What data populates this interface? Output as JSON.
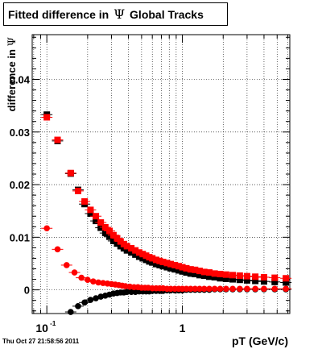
{
  "title": {
    "prefix": "Fitted difference in",
    "symbol": "Ψ",
    "suffix": "Global Tracks"
  },
  "timestamp": "Thu Oct 27 21:58:56 2011",
  "chart_data": {
    "type": "scatter",
    "xlabel": "pT (GeV/c)",
    "ylabel_prefix": "difference in",
    "ylabel_symbol": "Ψ",
    "x_scale": "log",
    "xlim": [
      0.078,
      6.2
    ],
    "ylim": [
      -0.0045,
      0.0485
    ],
    "x_ticks": [
      {
        "value": 0.1,
        "base": "10",
        "exp": "-1"
      },
      {
        "value": 1,
        "base": "1",
        "exp": ""
      }
    ],
    "y_ticks": [
      0,
      0.01,
      0.02,
      0.03,
      0.04
    ],
    "y_tick_labels": [
      "0",
      "0.01",
      "0.02",
      "0.03",
      "0.04"
    ],
    "grid": true,
    "series": [
      {
        "color": "#000000",
        "marker": "square",
        "points": [
          [
            0.1,
            0.0333
          ],
          [
            0.12,
            0.0283
          ],
          [
            0.15,
            0.0221
          ],
          [
            0.17,
            0.019
          ],
          [
            0.19,
            0.0163
          ],
          [
            0.21,
            0.0145
          ],
          [
            0.23,
            0.0131
          ],
          [
            0.25,
            0.0118
          ],
          [
            0.27,
            0.0108
          ],
          [
            0.29,
            0.0101
          ],
          [
            0.31,
            0.0093
          ],
          [
            0.33,
            0.0088
          ],
          [
            0.35,
            0.0083
          ],
          [
            0.37,
            0.0079
          ],
          [
            0.39,
            0.0075
          ],
          [
            0.42,
            0.0071
          ],
          [
            0.45,
            0.0067
          ],
          [
            0.48,
            0.0063
          ],
          [
            0.51,
            0.006
          ],
          [
            0.54,
            0.0057
          ],
          [
            0.57,
            0.0054
          ],
          [
            0.6,
            0.0052
          ],
          [
            0.64,
            0.0049
          ],
          [
            0.68,
            0.0047
          ],
          [
            0.72,
            0.0045
          ],
          [
            0.77,
            0.0043
          ],
          [
            0.82,
            0.0041
          ],
          [
            0.88,
            0.0039
          ],
          [
            0.94,
            0.0037
          ],
          [
            1.0,
            0.0035
          ],
          [
            1.07,
            0.0033
          ],
          [
            1.15,
            0.0031
          ],
          [
            1.24,
            0.003
          ],
          [
            1.34,
            0.0028
          ],
          [
            1.45,
            0.0027
          ],
          [
            1.58,
            0.0025
          ],
          [
            1.73,
            0.0024
          ],
          [
            1.9,
            0.0022
          ],
          [
            2.1,
            0.0021
          ],
          [
            2.35,
            0.002
          ],
          [
            2.65,
            0.0019
          ],
          [
            3.0,
            0.0018
          ],
          [
            3.45,
            0.0017
          ],
          [
            4.0,
            0.0016
          ],
          [
            4.8,
            0.0015
          ],
          [
            5.8,
            0.0014
          ]
        ]
      },
      {
        "color": "#ff0000",
        "marker": "square",
        "points": [
          [
            0.1,
            0.0328
          ],
          [
            0.12,
            0.0285
          ],
          [
            0.15,
            0.0222
          ],
          [
            0.17,
            0.0188
          ],
          [
            0.19,
            0.0168
          ],
          [
            0.21,
            0.0152
          ],
          [
            0.23,
            0.014
          ],
          [
            0.25,
            0.0128
          ],
          [
            0.27,
            0.0119
          ],
          [
            0.29,
            0.0112
          ],
          [
            0.31,
            0.0104
          ],
          [
            0.33,
            0.0098
          ],
          [
            0.35,
            0.0092
          ],
          [
            0.37,
            0.0087
          ],
          [
            0.39,
            0.0083
          ],
          [
            0.42,
            0.0079
          ],
          [
            0.45,
            0.0075
          ],
          [
            0.48,
            0.0071
          ],
          [
            0.51,
            0.0068
          ],
          [
            0.54,
            0.0065
          ],
          [
            0.57,
            0.0062
          ],
          [
            0.6,
            0.006
          ],
          [
            0.64,
            0.0057
          ],
          [
            0.68,
            0.0055
          ],
          [
            0.72,
            0.0053
          ],
          [
            0.77,
            0.0051
          ],
          [
            0.82,
            0.0049
          ],
          [
            0.88,
            0.0047
          ],
          [
            0.94,
            0.0045
          ],
          [
            1.0,
            0.0043
          ],
          [
            1.07,
            0.0041
          ],
          [
            1.15,
            0.0039
          ],
          [
            1.24,
            0.0038
          ],
          [
            1.34,
            0.0036
          ],
          [
            1.45,
            0.0034
          ],
          [
            1.58,
            0.0033
          ],
          [
            1.73,
            0.0031
          ],
          [
            1.9,
            0.003
          ],
          [
            2.1,
            0.0029
          ],
          [
            2.35,
            0.0028
          ],
          [
            2.65,
            0.0027
          ],
          [
            3.0,
            0.0026
          ],
          [
            3.45,
            0.0025
          ],
          [
            4.0,
            0.0024
          ],
          [
            4.8,
            0.0023
          ],
          [
            5.8,
            0.0022
          ]
        ]
      },
      {
        "color": "#000000",
        "marker": "circle",
        "points": [
          [
            0.15,
            -0.0042
          ],
          [
            0.17,
            -0.0031
          ],
          [
            0.19,
            -0.0024
          ],
          [
            0.21,
            -0.0019
          ],
          [
            0.23,
            -0.0016
          ],
          [
            0.25,
            -0.0013
          ],
          [
            0.27,
            -0.0011
          ],
          [
            0.29,
            -0.0009
          ],
          [
            0.31,
            -0.0007
          ],
          [
            0.33,
            -0.0006
          ],
          [
            0.35,
            -0.0005
          ],
          [
            0.37,
            -0.0005
          ],
          [
            0.39,
            -0.0004
          ],
          [
            0.42,
            -0.0004
          ],
          [
            0.45,
            -0.0004
          ],
          [
            0.48,
            -0.0003
          ],
          [
            0.51,
            -0.0003
          ],
          [
            0.54,
            -0.0003
          ],
          [
            0.57,
            -0.0003
          ],
          [
            0.6,
            -0.0002
          ],
          [
            0.64,
            -0.0002
          ],
          [
            0.68,
            -0.0002
          ],
          [
            0.72,
            -0.0002
          ],
          [
            0.77,
            -0.0001
          ],
          [
            0.82,
            -0.0001
          ],
          [
            0.88,
            -0.0001
          ],
          [
            0.94,
            -0.0001
          ],
          [
            1.0,
            -0.0001
          ],
          [
            1.07,
            0.0
          ],
          [
            1.15,
            0.0
          ],
          [
            1.24,
            0.0
          ],
          [
            1.34,
            0.0
          ],
          [
            1.45,
            0.0
          ],
          [
            1.58,
            0.0
          ],
          [
            1.73,
            0.0001
          ],
          [
            1.9,
            0.0001
          ],
          [
            2.1,
            0.0001
          ],
          [
            2.35,
            0.0001
          ],
          [
            2.65,
            0.0001
          ],
          [
            3.0,
            0.0001
          ],
          [
            3.45,
            0.0001
          ],
          [
            4.0,
            0.0001
          ],
          [
            4.8,
            0.0001
          ],
          [
            5.8,
            0.0001
          ]
        ]
      },
      {
        "color": "#ff0000",
        "marker": "circle",
        "points": [
          [
            0.1,
            0.0117
          ],
          [
            0.12,
            0.0077
          ],
          [
            0.14,
            0.0047
          ],
          [
            0.16,
            0.0033
          ],
          [
            0.18,
            0.0023
          ],
          [
            0.2,
            0.0019
          ],
          [
            0.22,
            0.0016
          ],
          [
            0.24,
            0.0014
          ],
          [
            0.26,
            0.0013
          ],
          [
            0.28,
            0.0012
          ],
          [
            0.3,
            0.0011
          ],
          [
            0.32,
            0.001
          ],
          [
            0.34,
            0.0009
          ],
          [
            0.36,
            0.0008
          ],
          [
            0.38,
            0.0007
          ],
          [
            0.41,
            0.0006
          ],
          [
            0.44,
            0.0005
          ],
          [
            0.47,
            0.0005
          ],
          [
            0.5,
            0.0004
          ],
          [
            0.53,
            0.0004
          ],
          [
            0.56,
            0.0004
          ],
          [
            0.6,
            0.0003
          ],
          [
            0.64,
            0.0003
          ],
          [
            0.68,
            0.0003
          ],
          [
            0.72,
            0.0003
          ],
          [
            0.77,
            0.0002
          ],
          [
            0.82,
            0.0002
          ],
          [
            0.88,
            0.0002
          ],
          [
            0.94,
            0.0002
          ],
          [
            1.0,
            0.0002
          ],
          [
            1.07,
            0.0002
          ],
          [
            1.15,
            0.0002
          ],
          [
            1.24,
            0.0002
          ],
          [
            1.34,
            0.0002
          ],
          [
            1.45,
            0.0002
          ],
          [
            1.58,
            0.0002
          ],
          [
            1.73,
            0.0002
          ],
          [
            1.9,
            0.0002
          ],
          [
            2.1,
            0.0002
          ],
          [
            2.35,
            0.0002
          ],
          [
            2.65,
            0.0002
          ],
          [
            3.0,
            0.0002
          ],
          [
            3.45,
            0.0002
          ],
          [
            4.0,
            0.0002
          ],
          [
            4.8,
            0.0002
          ],
          [
            5.8,
            0.0002
          ]
        ]
      }
    ]
  }
}
